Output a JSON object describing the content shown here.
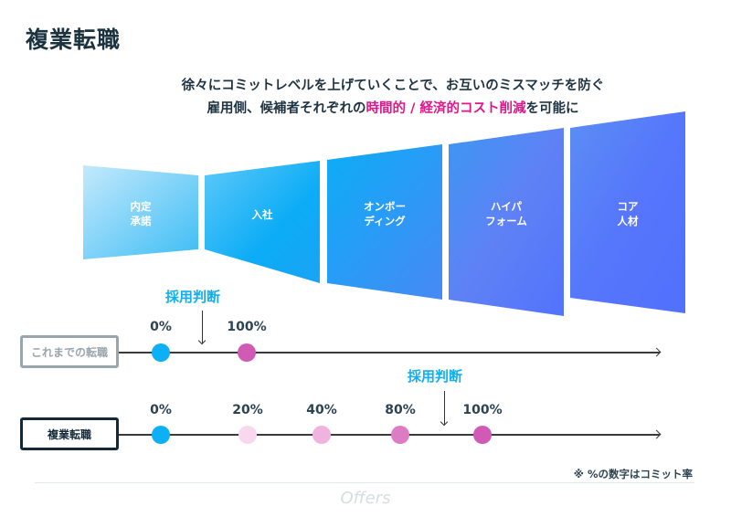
{
  "title": "複業転職",
  "subtitle": {
    "line1": "徐々にコミットレベルを上げていくことで、お互いのミスマッチを防ぐ",
    "line2_prefix": "雇用側、候補者それぞれの",
    "line2_highlight": "時間的 / 経済的コスト削減",
    "line2_suffix": "を可能に"
  },
  "colors": {
    "highlight": "#e0168a",
    "decision": "#11aef0",
    "dot_start": "#0db0f5",
    "dot_commit": "#d05ab4"
  },
  "stages": [
    {
      "line1": "内定",
      "line2": "承諾"
    },
    {
      "line1": "入社",
      "line2": ""
    },
    {
      "line1": "オンボー",
      "line2": "ディング"
    },
    {
      "line1": "ハイパ",
      "line2": "フォーム"
    },
    {
      "line1": "コア",
      "line2": "人材"
    }
  ],
  "decision_label": "採用判断",
  "rows": [
    {
      "name": "これまでの転職",
      "points": [
        {
          "label": "0%",
          "commit": 0
        },
        {
          "label": "100%",
          "commit": 100
        }
      ]
    },
    {
      "name": "複業転職",
      "points": [
        {
          "label": "0%",
          "commit": 0
        },
        {
          "label": "20%",
          "commit": 20
        },
        {
          "label": "40%",
          "commit": 40
        },
        {
          "label": "80%",
          "commit": 80
        },
        {
          "label": "100%",
          "commit": 100
        }
      ]
    }
  ],
  "note": "※ %の数字はコミット率",
  "logo": "Offers"
}
